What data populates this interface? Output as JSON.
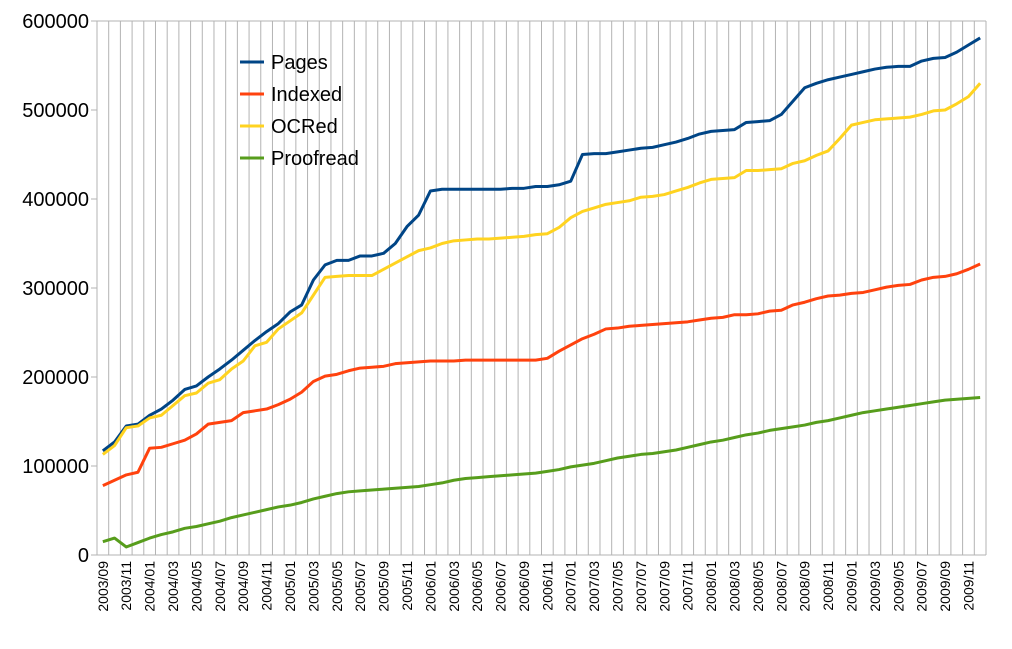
{
  "chart_data": {
    "type": "line",
    "title": "",
    "xlabel": "",
    "ylabel": "",
    "ylim": [
      0,
      600000
    ],
    "y_ticks": [
      "0",
      "100000",
      "200000",
      "300000",
      "400000",
      "500000",
      "600000"
    ],
    "grid": "vertical",
    "legend_position": "top-left",
    "x": [
      "2003/09",
      "2003/10",
      "2003/11",
      "2003/12",
      "2004/01",
      "2004/02",
      "2004/03",
      "2004/04",
      "2004/05",
      "2004/06",
      "2004/07",
      "2004/08",
      "2004/09",
      "2004/10",
      "2004/11",
      "2004/12",
      "2005/01",
      "2005/02",
      "2005/03",
      "2005/04",
      "2005/05",
      "2005/06",
      "2005/07",
      "2005/08",
      "2005/09",
      "2005/10",
      "2005/11",
      "2005/12",
      "2006/01",
      "2006/02",
      "2006/03",
      "2006/04",
      "2006/05",
      "2006/06",
      "2006/07",
      "2006/08",
      "2006/09",
      "2006/10",
      "2006/11",
      "2006/12",
      "2007/01",
      "2007/02",
      "2007/03",
      "2007/04",
      "2007/05",
      "2007/06",
      "2007/07",
      "2007/08",
      "2007/09",
      "2007/10",
      "2007/11",
      "2007/12",
      "2008/01",
      "2008/02",
      "2008/03",
      "2008/04",
      "2008/05",
      "2008/06",
      "2008/07",
      "2008/08",
      "2008/09",
      "2008/10",
      "2008/11",
      "2008/12",
      "2009/01",
      "2009/02",
      "2009/03",
      "2009/04",
      "2009/05",
      "2009/06",
      "2009/07",
      "2009/08",
      "2009/09",
      "2009/10",
      "2009/11",
      "2009/12"
    ],
    "x_tick_labels": [
      "2003/09",
      "2003/11",
      "2004/01",
      "2004/03",
      "2004/05",
      "2004/07",
      "2004/09",
      "2004/11",
      "2005/01",
      "2005/03",
      "2005/05",
      "2005/07",
      "2005/09",
      "2005/11",
      "2006/01",
      "2006/03",
      "2006/05",
      "2006/07",
      "2006/09",
      "2006/11",
      "2007/01",
      "2007/03",
      "2007/05",
      "2007/07",
      "2007/09",
      "2007/11",
      "2008/01",
      "2008/03",
      "2008/05",
      "2008/07",
      "2008/09",
      "2008/11",
      "2009/01",
      "2009/03",
      "2009/05",
      "2009/07",
      "2009/09",
      "2009/11"
    ],
    "series": [
      {
        "name": "Pages",
        "color": "#004586",
        "values": [
          117000,
          127000,
          145000,
          147000,
          157000,
          164000,
          174000,
          186000,
          190000,
          200000,
          209000,
          219000,
          230000,
          241000,
          251000,
          260000,
          273000,
          281000,
          309000,
          326000,
          331000,
          331000,
          336000,
          336000,
          339000,
          350000,
          369000,
          382000,
          409000,
          411000,
          411000,
          411000,
          411000,
          411000,
          411000,
          412000,
          412000,
          414000,
          414000,
          416000,
          420000,
          450000,
          451000,
          451000,
          453000,
          455000,
          457000,
          458000,
          461000,
          464000,
          468000,
          473000,
          476000,
          477000,
          478000,
          486000,
          487000,
          488000,
          495000,
          510000,
          525000,
          530000,
          534000,
          537000,
          540000,
          543000,
          546000,
          548000,
          549000,
          549000,
          555000,
          558000,
          559000,
          565000,
          573000,
          581000
        ]
      },
      {
        "name": "Indexed",
        "color": "#ff420e",
        "values": [
          78000,
          84000,
          90000,
          93000,
          120000,
          121000,
          125000,
          129000,
          136000,
          147000,
          149000,
          151000,
          160000,
          162000,
          164000,
          169000,
          175000,
          183000,
          195000,
          201000,
          203000,
          207000,
          210000,
          211000,
          212000,
          215000,
          216000,
          217000,
          218000,
          218000,
          218000,
          219000,
          219000,
          219000,
          219000,
          219000,
          219000,
          219000,
          221000,
          229000,
          236000,
          243000,
          248000,
          254000,
          255000,
          257000,
          258000,
          259000,
          260000,
          261000,
          262000,
          264000,
          266000,
          267000,
          270000,
          270000,
          271000,
          274000,
          275000,
          281000,
          284000,
          288000,
          291000,
          292000,
          294000,
          295000,
          298000,
          301000,
          303000,
          304000,
          309000,
          312000,
          313000,
          316000,
          321000,
          327000
        ]
      },
      {
        "name": "OCRed",
        "color": "#ffd320",
        "values": [
          113000,
          123000,
          143000,
          145000,
          154000,
          157000,
          168000,
          179000,
          182000,
          193000,
          197000,
          209000,
          218000,
          235000,
          239000,
          254000,
          263000,
          272000,
          292000,
          312000,
          313000,
          314000,
          314000,
          314000,
          321000,
          328000,
          335000,
          342000,
          345000,
          350000,
          353000,
          354000,
          355000,
          355000,
          356000,
          357000,
          358000,
          360000,
          361000,
          368000,
          379000,
          386000,
          390000,
          394000,
          396000,
          398000,
          402000,
          403000,
          405000,
          409000,
          413000,
          418000,
          422000,
          423000,
          424000,
          432000,
          432000,
          433000,
          434000,
          440000,
          443000,
          449000,
          454000,
          468000,
          483000,
          486000,
          489000,
          490000,
          491000,
          492000,
          495000,
          499000,
          500000,
          507000,
          515000,
          530000
        ]
      },
      {
        "name": "Proofread",
        "color": "#579d1c",
        "values": [
          15000,
          19000,
          9000,
          14000,
          19000,
          23000,
          26000,
          30000,
          32000,
          35000,
          38000,
          42000,
          45000,
          48000,
          51000,
          54000,
          56000,
          59000,
          63000,
          66000,
          69000,
          71000,
          72000,
          73000,
          74000,
          75000,
          76000,
          77000,
          79000,
          81000,
          84000,
          86000,
          87000,
          88000,
          89000,
          90000,
          91000,
          92000,
          94000,
          96000,
          99000,
          101000,
          103000,
          106000,
          109000,
          111000,
          113000,
          114000,
          116000,
          118000,
          121000,
          124000,
          127000,
          129000,
          132000,
          135000,
          137000,
          140000,
          142000,
          144000,
          146000,
          149000,
          151000,
          154000,
          157000,
          160000,
          162000,
          164000,
          166000,
          168000,
          170000,
          172000,
          174000,
          175000,
          176000,
          177000
        ]
      }
    ]
  }
}
